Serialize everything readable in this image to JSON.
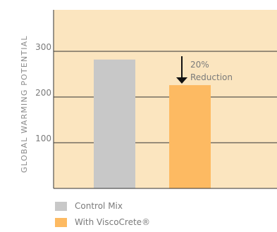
{
  "chart_data": {
    "type": "bar",
    "categories": [
      "Control Mix",
      "With ViscoCrete®"
    ],
    "values": [
      282,
      226
    ],
    "xlabel": "",
    "ylabel": "GLOBAL WARMING POTENTIAL",
    "yticks": [
      100,
      200,
      300
    ],
    "ylim": [
      0,
      390
    ],
    "grid": true,
    "legend_position": "bottom-left",
    "annotation": {
      "line1": "20%",
      "line2": "Reduction",
      "arrow": "down"
    },
    "colors": {
      "plot_background": "#fbe5bf",
      "control_mix": "#c8c8c8",
      "viscocrete": "#fdba62",
      "gridline": "#333333",
      "axis_text": "#7a7a7a"
    }
  }
}
